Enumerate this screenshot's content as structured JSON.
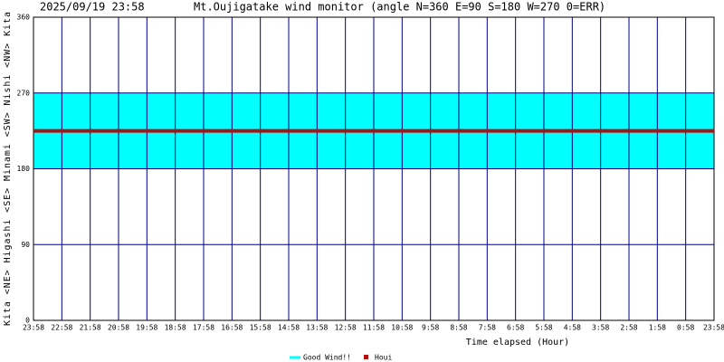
{
  "chart_data": {
    "type": "line",
    "timestamp": "2025/09/19 23:58",
    "title": "Mt.Oujigatake wind monitor (angle N=360 E=90 S=180 W=270 0=ERR)",
    "y_label": "Kita <NE> Higashi <SE> Minami <SW> Nishi <NW> Kita",
    "x_label": "Time elapsed (Hour)",
    "categories": [
      "23:58",
      "22:58",
      "21:58",
      "20:58",
      "19:58",
      "18:58",
      "17:58",
      "16:58",
      "15:58",
      "14:58",
      "13:58",
      "12:58",
      "11:58",
      "10:58",
      "9:58",
      "8:58",
      "7:58",
      "6:58",
      "5:58",
      "4:58",
      "3:58",
      "2:58",
      "1:58",
      "0:58",
      "23:58"
    ],
    "band": {
      "name": "Good Wind!!",
      "color": "#00ffff",
      "range": [
        180,
        270
      ]
    },
    "series": [
      {
        "name": "Houi",
        "color": "#b01010",
        "values": [
          225,
          225,
          225,
          225,
          225,
          225,
          225,
          225,
          225,
          225,
          225,
          225,
          225,
          225,
          225,
          225,
          225,
          225,
          225,
          225,
          225,
          225,
          225,
          225,
          225
        ]
      }
    ],
    "ylim": [
      0,
      360
    ],
    "yticks": [
      0,
      90,
      180,
      270,
      360
    ],
    "grid": true
  }
}
